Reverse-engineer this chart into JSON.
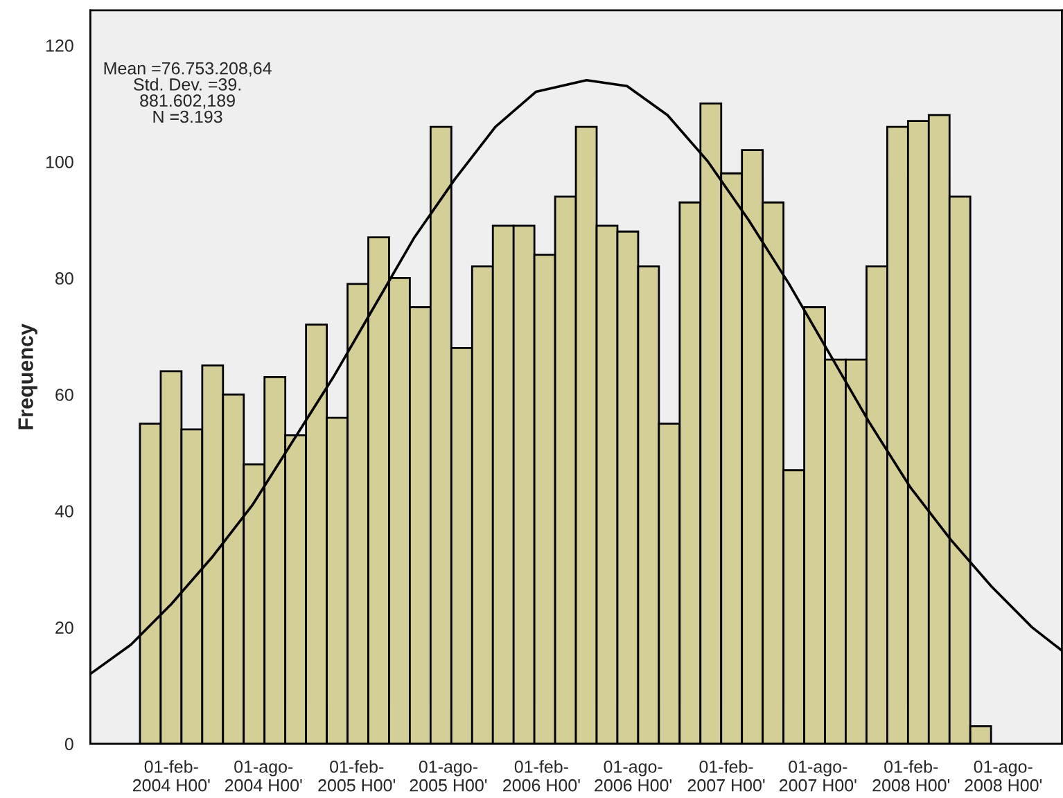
{
  "chart_data": {
    "type": "histogram",
    "ylabel": "Frequency",
    "bins": [
      "2003-12-01",
      "2004-01-11",
      "2004-02-21",
      "2004-04-02",
      "2004-05-13",
      "2004-06-23",
      "2004-08-03",
      "2004-09-13",
      "2004-10-24",
      "2004-12-04",
      "2005-01-14",
      "2005-02-24",
      "2005-04-06",
      "2005-05-17",
      "2005-06-27",
      "2005-08-07",
      "2005-09-17",
      "2005-10-28",
      "2005-12-08",
      "2006-01-18",
      "2006-02-28",
      "2006-04-10",
      "2006-05-21",
      "2006-07-01",
      "2006-08-11",
      "2006-09-21",
      "2006-11-01",
      "2006-12-12",
      "2007-01-22",
      "2007-03-04",
      "2007-04-14",
      "2007-05-25",
      "2007-07-05",
      "2007-08-15",
      "2007-09-25",
      "2007-11-05",
      "2007-12-16",
      "2008-01-26",
      "2008-03-07",
      "2008-04-17",
      "2008-05-28",
      "2008-07-08"
    ],
    "values": [
      55,
      64,
      54,
      65,
      60,
      48,
      63,
      53,
      72,
      56,
      79,
      87,
      80,
      75,
      106,
      68,
      82,
      89,
      89,
      84,
      94,
      106,
      89,
      88,
      82,
      55,
      93,
      110,
      98,
      102,
      93,
      47,
      75,
      66,
      66,
      82,
      106,
      107,
      108,
      94,
      3
    ],
    "color": "#d4cf96",
    "series": [
      {
        "type": "line",
        "color": "#000000",
        "x": [
          "2003-08-25",
          "2003-11-13",
          "2004-02-01",
          "2004-04-21",
          "2004-07-10",
          "2004-09-28",
          "2004-12-17",
          "2005-03-07",
          "2005-05-26",
          "2005-08-14",
          "2005-11-02",
          "2006-01-21",
          "2006-05-01",
          "2006-07-20",
          "2006-10-08",
          "2006-12-27",
          "2007-03-17",
          "2007-06-05",
          "2007-08-24",
          "2007-11-12",
          "2008-01-31",
          "2008-04-20",
          "2008-07-09",
          "2008-09-27",
          "2008-11-25"
        ],
        "values": [
          12,
          17,
          24,
          32,
          41,
          52,
          63,
          75,
          87,
          97,
          106,
          112,
          114,
          113,
          108,
          100,
          90,
          79,
          67,
          55,
          44,
          35,
          27,
          20,
          16
        ]
      }
    ],
    "xlim": [
      "2003-08-25",
      "2008-11-25"
    ],
    "ylim": [
      0,
      126
    ],
    "xticks": [
      {
        "value": "2004-02-01",
        "label": "01-feb-\n2004 H00'"
      },
      {
        "value": "2004-08-01",
        "label": "01-ago-\n2004 H00'"
      },
      {
        "value": "2005-02-01",
        "label": "01-feb-\n2005 H00'"
      },
      {
        "value": "2005-08-01",
        "label": "01-ago-\n2005 H00'"
      },
      {
        "value": "2006-02-01",
        "label": "01-feb-\n2006 H00'"
      },
      {
        "value": "2006-08-01",
        "label": "01-ago-\n2006 H00'"
      },
      {
        "value": "2007-02-01",
        "label": "01-feb-\n2007 H00'"
      },
      {
        "value": "2007-08-01",
        "label": "01-ago-\n2007 H00'"
      },
      {
        "value": "2008-02-01",
        "label": "01-feb-\n2008 H00'"
      },
      {
        "value": "2008-08-01",
        "label": "01-ago-\n2008 H00'"
      }
    ],
    "yticks": [
      0,
      20,
      40,
      60,
      80,
      100,
      120
    ],
    "annotations": [
      "Mean =76.753.208,64\nStd. Dev. =39.\n881.602,189\nN =3.193"
    ],
    "grid": false,
    "legend": false
  }
}
